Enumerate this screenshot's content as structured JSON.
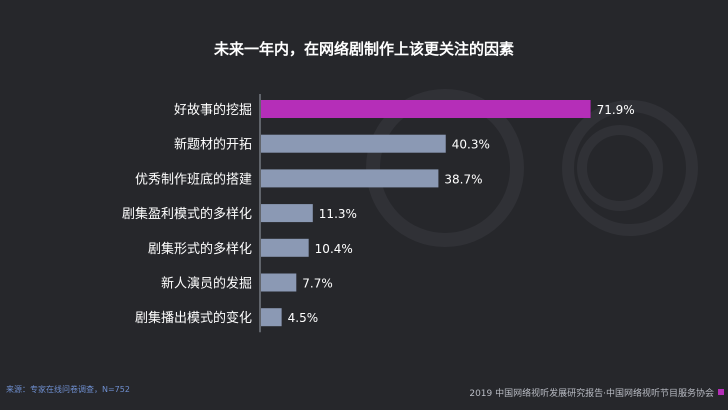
{
  "title": "未来一年内，在网络剧制作上该更关注的因素",
  "source_note": "来源：专家在线问卷调查，N=752",
  "footer": "2019 中国网络视听发展研究报告·中国网络视听节目服务协会",
  "colors": {
    "background": "#26272b",
    "highlight_bar": "#b52eb8",
    "bar": "#8b99b4",
    "accent": "#b52eb8"
  },
  "chart_data": {
    "type": "bar",
    "orientation": "horizontal",
    "categories": [
      "好故事的挖掘",
      "新题材的开拓",
      "优秀制作班底的搭建",
      "剧集盈利模式的多样化",
      "剧集形式的多样化",
      "新人演员的发掘",
      "剧集播出模式的变化"
    ],
    "values": [
      71.9,
      40.3,
      38.7,
      11.3,
      10.4,
      7.7,
      4.5
    ],
    "value_labels": [
      "71.9%",
      "40.3%",
      "38.7%",
      "11.3%",
      "10.4%",
      "7.7%",
      "4.5%"
    ],
    "unit": "%",
    "highlight_index": 0,
    "xlim": [
      0,
      100
    ],
    "grid": false,
    "legend": "none"
  }
}
